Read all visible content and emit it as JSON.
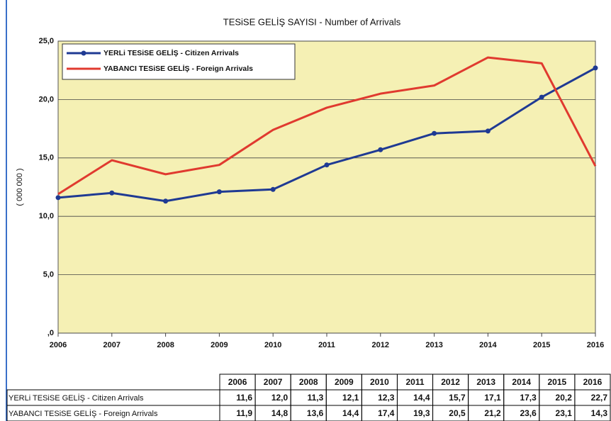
{
  "chart_data": {
    "type": "line",
    "title": "TESiSE GELİŞ SAYISI  -  Number of Arrivals",
    "y_label": "( 000 000 )",
    "categories": [
      "2006",
      "2007",
      "2008",
      "2009",
      "2010",
      "2011",
      "2012",
      "2013",
      "2014",
      "2015",
      "2016"
    ],
    "series": [
      {
        "name": "YERLi TESiSE GELİŞ - Citizen Arrivals",
        "color": "#1f3a93",
        "markers": true,
        "values": [
          11.6,
          12.0,
          11.3,
          12.1,
          12.3,
          14.4,
          15.7,
          17.1,
          17.3,
          20.2,
          22.7
        ],
        "value_labels": [
          "11,6",
          "12,0",
          "11,3",
          "12,1",
          "12,3",
          "14,4",
          "15,7",
          "17,1",
          "17,3",
          "20,2",
          "22,7"
        ]
      },
      {
        "name": "YABANCI TESiSE GELİŞ - Foreign Arrivals",
        "color": "#e03a2f",
        "markers": false,
        "values": [
          11.9,
          14.8,
          13.6,
          14.4,
          17.4,
          19.3,
          20.5,
          21.2,
          23.6,
          23.1,
          14.3
        ],
        "value_labels": [
          "11,9",
          "14,8",
          "13,6",
          "14,4",
          "17,4",
          "19,3",
          "20,5",
          "21,2",
          "23,6",
          "23,1",
          "14,3"
        ]
      }
    ],
    "ylim": [
      0,
      25
    ],
    "yticks": [
      {
        "value": 0,
        "label": ",0"
      },
      {
        "value": 5,
        "label": "5,0"
      },
      {
        "value": 10,
        "label": "10,0"
      },
      {
        "value": 15,
        "label": "15,0"
      },
      {
        "value": 20,
        "label": "20,0"
      },
      {
        "value": 25,
        "label": "25,0"
      }
    ],
    "grid": true,
    "legend": "top-left"
  }
}
